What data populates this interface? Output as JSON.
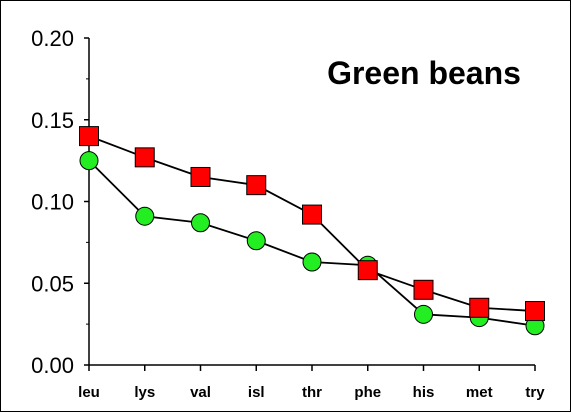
{
  "chart_data": {
    "type": "line",
    "title": "Green beans",
    "categories": [
      "leu",
      "lys",
      "val",
      "isl",
      "thr",
      "phe",
      "his",
      "met",
      "try"
    ],
    "yticks": [
      "0.00",
      "0.05",
      "0.10",
      "0.15",
      "0.20"
    ],
    "ylim": [
      0,
      0.2
    ],
    "grid": false,
    "series": [
      {
        "marker": "square",
        "color": "#ff0000",
        "values": [
          0.14,
          0.127,
          0.115,
          0.11,
          0.092,
          0.058,
          0.046,
          0.035,
          0.033
        ]
      },
      {
        "marker": "circle",
        "color": "#22ee22",
        "values": [
          0.125,
          0.091,
          0.087,
          0.076,
          0.063,
          0.061,
          0.031,
          0.029,
          0.024
        ]
      }
    ]
  }
}
